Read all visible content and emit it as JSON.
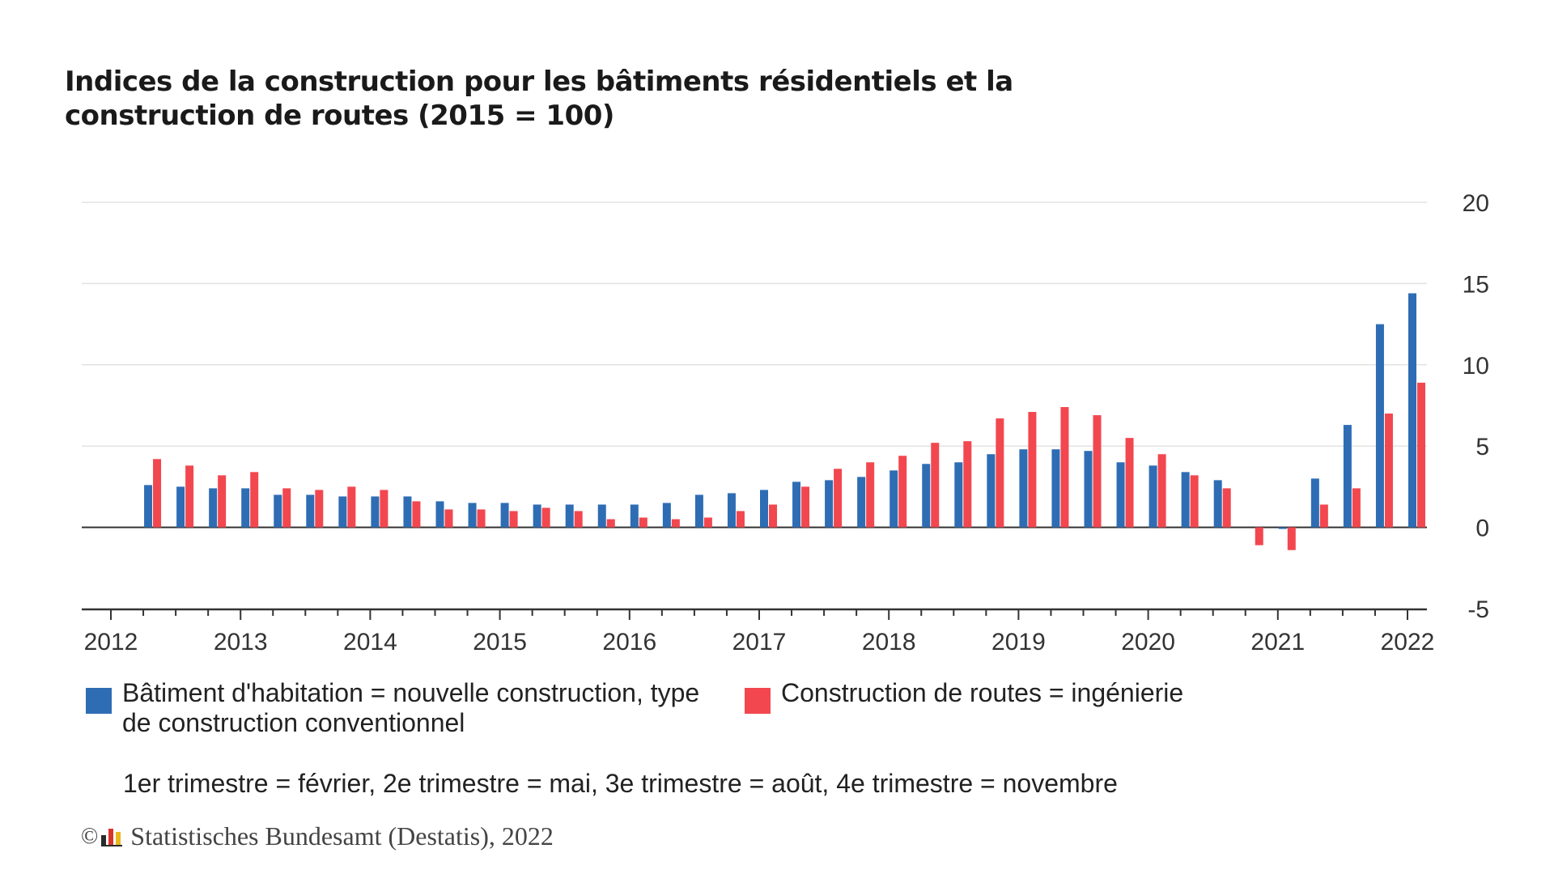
{
  "title": "Indices de la construction pour les bâtiments résidentiels et la construction de routes (2015 = 100)",
  "legend": [
    {
      "label": "Bâtiment d'habitation = nouvelle construction, type de construction conventionnel",
      "color": "#2e6db4"
    },
    {
      "label": "Construction de routes = ingénierie",
      "color": "#f2474f"
    }
  ],
  "note": "1er trimestre = février, 2e trimestre = mai, 3e trimestre = août, 4e trimestre = novembre",
  "source": {
    "copyright_symbol": "©",
    "logo_icon": "destatis-logo-icon",
    "text": "Statistisches Bundesamt (Destatis), 2022"
  },
  "colors": {
    "series1": "#2e6db4",
    "series2": "#f2474f",
    "grid": "#e3e3e3",
    "axis": "#333333"
  },
  "chart_data": {
    "type": "bar",
    "title": "Indices de la construction pour les bâtiments résidentiels et la construction de routes (2015 = 100)",
    "xlabel": "",
    "ylabel": "",
    "ylim": [
      -5,
      20
    ],
    "yticks": [
      -5,
      0,
      5,
      10,
      15,
      20
    ],
    "y_axis_side": "right",
    "grid": true,
    "legend_position": "bottom",
    "x_tick_labels": [
      "2012",
      "2013",
      "2014",
      "2015",
      "2016",
      "2017",
      "2018",
      "2019",
      "2020",
      "2021",
      "2022"
    ],
    "categories": [
      "2012 T1",
      "2012 T2",
      "2012 T3",
      "2012 T4",
      "2013 T1",
      "2013 T2",
      "2013 T3",
      "2013 T4",
      "2014 T1",
      "2014 T2",
      "2014 T3",
      "2014 T4",
      "2015 T1",
      "2015 T2",
      "2015 T3",
      "2015 T4",
      "2016 T1",
      "2016 T2",
      "2016 T3",
      "2016 T4",
      "2017 T1",
      "2017 T2",
      "2017 T3",
      "2017 T4",
      "2018 T1",
      "2018 T2",
      "2018 T3",
      "2018 T4",
      "2019 T1",
      "2019 T2",
      "2019 T3",
      "2019 T4",
      "2020 T1",
      "2020 T2",
      "2020 T3",
      "2020 T4",
      "2021 T1",
      "2021 T2",
      "2021 T3",
      "2021 T4",
      "2022 T1"
    ],
    "series": [
      {
        "name": "Bâtiment d'habitation = nouvelle construction, type de construction conventionnel",
        "values": [
          null,
          2.6,
          2.5,
          2.4,
          2.4,
          2.0,
          2.0,
          1.9,
          1.9,
          1.9,
          1.6,
          1.5,
          1.5,
          1.4,
          1.4,
          1.4,
          1.4,
          1.5,
          2.0,
          2.1,
          2.3,
          2.8,
          2.9,
          3.1,
          3.5,
          3.9,
          4.0,
          4.5,
          4.8,
          4.8,
          4.7,
          4.0,
          3.8,
          3.4,
          2.9,
          null,
          -0.1,
          3.0,
          6.3,
          12.5,
          14.4
        ]
      },
      {
        "name": "Construction de routes = ingénierie",
        "values": [
          null,
          4.2,
          3.8,
          3.2,
          3.4,
          2.4,
          2.3,
          2.5,
          2.3,
          1.6,
          1.1,
          1.1,
          1.0,
          1.2,
          1.0,
          0.5,
          0.6,
          0.5,
          0.6,
          1.0,
          1.4,
          2.5,
          3.6,
          4.0,
          4.4,
          5.2,
          5.3,
          6.7,
          7.1,
          7.4,
          6.9,
          5.5,
          4.5,
          3.2,
          2.4,
          -1.1,
          -1.4,
          1.4,
          2.4,
          7.0,
          8.9
        ]
      }
    ]
  }
}
